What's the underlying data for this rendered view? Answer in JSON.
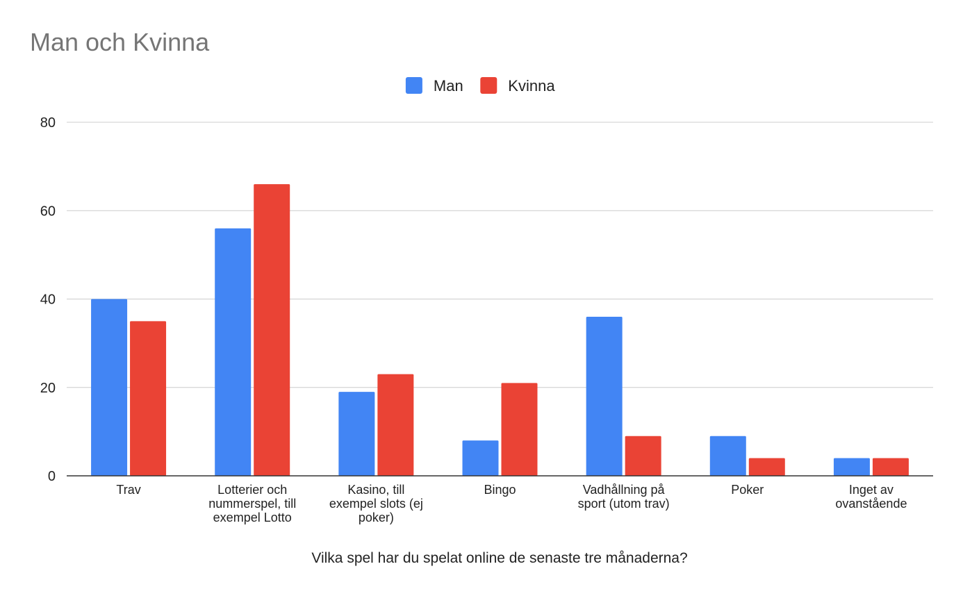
{
  "chart_data": {
    "type": "bar",
    "title": "Man och Kvinna",
    "xlabel": "Vilka spel har du spelat online de senaste tre månaderna?",
    "ylabel": "",
    "ylim": [
      0,
      80
    ],
    "yticks": [
      0,
      20,
      40,
      60,
      80
    ],
    "grid": true,
    "legend_position": "top-center",
    "categories": [
      "Trav",
      "Lotterier och nummerspel, till exempel Lotto",
      "Kasino, till exempel slots (ej poker)",
      "Bingo",
      "Vadhållning på sport (utom trav)",
      "Poker",
      "Inget av ovanstående"
    ],
    "category_lines": [
      [
        "Trav"
      ],
      [
        "Lotterier och",
        "nummerspel, till",
        "exempel Lotto"
      ],
      [
        "Kasino, till",
        "exempel slots (ej",
        "poker)"
      ],
      [
        "Bingo"
      ],
      [
        "Vadhållning på",
        "sport (utom trav)"
      ],
      [
        "Poker"
      ],
      [
        "Inget av",
        "ovanstående"
      ]
    ],
    "series": [
      {
        "name": "Man",
        "color": "#4285F4",
        "values": [
          40,
          56,
          19,
          8,
          36,
          9,
          4
        ]
      },
      {
        "name": "Kvinna",
        "color": "#EA4335",
        "values": [
          35,
          66,
          23,
          21,
          9,
          4,
          4
        ]
      }
    ]
  }
}
